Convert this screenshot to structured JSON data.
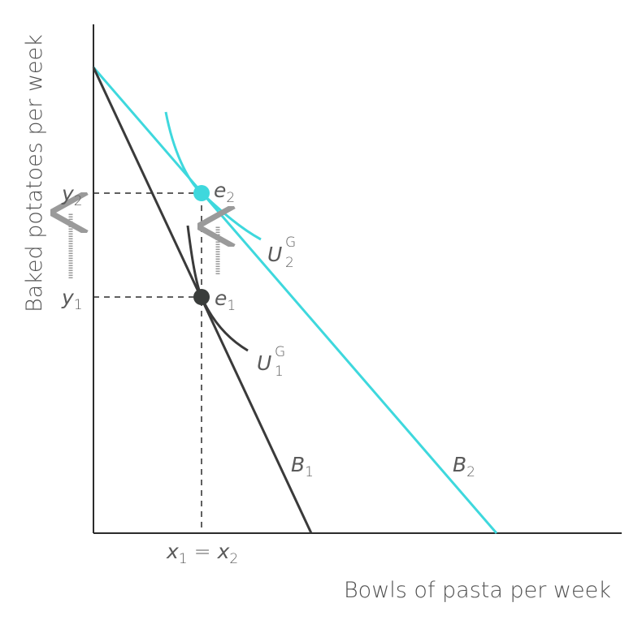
{
  "axes": {
    "x_title": "Bowls of pasta per week",
    "y_title": "Baked potatoes per week"
  },
  "ticks": {
    "x": {
      "a": "x",
      "a_sub": "1",
      "eq": "=",
      "b": "x",
      "b_sub": "2"
    },
    "y_upper": {
      "var": "y",
      "sub": "2"
    },
    "y_lower": {
      "var": "y",
      "sub": "1"
    }
  },
  "points": {
    "e1": {
      "var": "e",
      "sub": "1"
    },
    "e2": {
      "var": "e",
      "sub": "2"
    }
  },
  "curves": {
    "U1": {
      "var": "U",
      "sub": "1",
      "sup": "G"
    },
    "U2": {
      "var": "U",
      "sub": "2",
      "sup": "G"
    }
  },
  "budget_lines": {
    "B1": {
      "var": "B",
      "sub": "1"
    },
    "B2": {
      "var": "B",
      "sub": "2"
    }
  },
  "colors": {
    "axis": "#2b2b2b",
    "budget_1": "#3a3a3a",
    "budget_2": "#3ed8dd",
    "point_1": "#3a3d3b",
    "point_2": "#3ed8dd",
    "guide": "#2b2b2b",
    "arrow": "#9a9a9a"
  }
}
